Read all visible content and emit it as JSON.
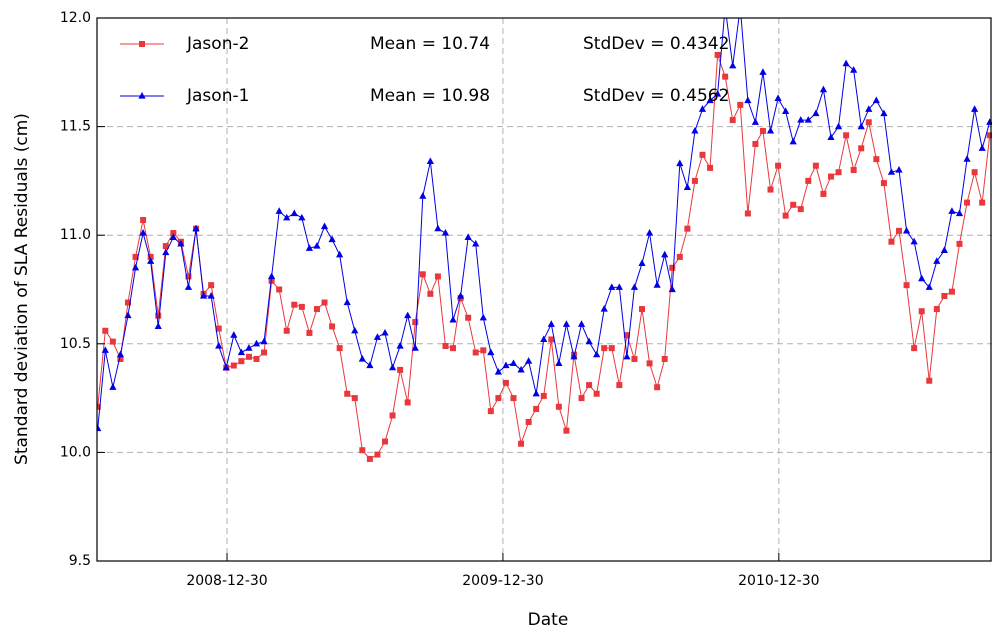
{
  "chart_data": {
    "type": "line",
    "x_label": "Date",
    "y_label": "Standard deviation of SLA Residuals (cm)",
    "x": [
      "2008-07-12",
      "2008-07-22",
      "2008-08-01",
      "2008-08-11",
      "2008-08-21",
      "2008-08-31",
      "2008-09-10",
      "2008-09-20",
      "2008-09-30",
      "2008-10-10",
      "2008-10-20",
      "2008-10-30",
      "2008-11-09",
      "2008-11-19",
      "2008-11-29",
      "2008-12-09",
      "2008-12-19",
      "2008-12-29",
      "2009-01-08",
      "2009-01-18",
      "2009-01-28",
      "2009-02-07",
      "2009-02-17",
      "2009-02-27",
      "2009-03-09",
      "2009-03-19",
      "2009-03-29",
      "2009-04-08",
      "2009-04-18",
      "2009-04-28",
      "2009-05-08",
      "2009-05-18",
      "2009-05-28",
      "2009-06-07",
      "2009-06-17",
      "2009-06-27",
      "2009-07-07",
      "2009-07-17",
      "2009-07-27",
      "2009-08-06",
      "2009-08-16",
      "2009-08-26",
      "2009-09-05",
      "2009-09-15",
      "2009-09-25",
      "2009-10-05",
      "2009-10-15",
      "2009-10-25",
      "2009-11-04",
      "2009-11-14",
      "2009-11-24",
      "2009-12-04",
      "2009-12-14",
      "2009-12-24",
      "2010-01-03",
      "2010-01-13",
      "2010-01-23",
      "2010-02-02",
      "2010-02-12",
      "2010-02-22",
      "2010-03-04",
      "2010-03-14",
      "2010-03-24",
      "2010-04-03",
      "2010-04-13",
      "2010-04-23",
      "2010-05-03",
      "2010-05-13",
      "2010-05-23",
      "2010-06-02",
      "2010-06-12",
      "2010-06-22",
      "2010-07-02",
      "2010-07-12",
      "2010-07-22",
      "2010-08-01",
      "2010-08-11",
      "2010-08-21",
      "2010-08-31",
      "2010-09-10",
      "2010-09-20",
      "2010-09-30",
      "2010-10-10",
      "2010-10-20",
      "2010-10-30",
      "2010-11-09",
      "2010-11-19",
      "2010-11-29",
      "2010-12-09",
      "2010-12-19",
      "2010-12-29",
      "2011-01-08",
      "2011-01-18",
      "2011-01-28",
      "2011-02-07",
      "2011-02-17",
      "2011-02-27",
      "2011-03-09",
      "2011-03-19",
      "2011-03-29",
      "2011-04-08",
      "2011-04-18",
      "2011-04-28",
      "2011-05-08",
      "2011-05-18",
      "2011-05-28",
      "2011-06-07",
      "2011-06-17",
      "2011-06-27",
      "2011-07-07",
      "2011-07-17",
      "2011-07-27",
      "2011-08-06",
      "2011-08-16",
      "2011-08-26",
      "2011-09-05",
      "2011-09-15",
      "2011-09-25",
      "2011-10-05"
    ],
    "series": [
      {
        "name": "Jason-2",
        "color": "#e8383d",
        "marker": "square",
        "stats": [
          "Mean = 10.74",
          "StdDev = 0.4342"
        ],
        "values": [
          10.21,
          10.56,
          10.51,
          10.43,
          10.69,
          10.9,
          11.07,
          10.9,
          10.63,
          10.95,
          11.01,
          10.97,
          10.81,
          11.03,
          10.73,
          10.77,
          10.57,
          10.39,
          10.4,
          10.42,
          10.44,
          10.43,
          10.46,
          10.79,
          10.75,
          10.56,
          10.68,
          10.67,
          10.55,
          10.66,
          10.69,
          10.58,
          10.48,
          10.27,
          10.25,
          10.01,
          9.97,
          9.99,
          10.05,
          10.17,
          10.38,
          10.23,
          10.6,
          10.82,
          10.73,
          10.81,
          10.49,
          10.48,
          10.71,
          10.62,
          10.46,
          10.47,
          10.19,
          10.25,
          10.32,
          10.25,
          10.04,
          10.14,
          10.2,
          10.26,
          10.52,
          10.21,
          10.1,
          10.45,
          10.25,
          10.31,
          10.27,
          10.48,
          10.48,
          10.31,
          10.54,
          10.43,
          10.66,
          10.41,
          10.3,
          10.43,
          10.85,
          10.9,
          11.03,
          11.25,
          11.37,
          11.31,
          11.83,
          11.73,
          11.53,
          11.6,
          11.1,
          11.42,
          11.48,
          11.21,
          11.32,
          11.09,
          11.14,
          11.12,
          11.25,
          11.32,
          11.19,
          11.27,
          11.29,
          11.46,
          11.3,
          11.4,
          11.52,
          11.35,
          11.24,
          10.97,
          11.02,
          10.77,
          10.48,
          10.65,
          10.33,
          10.66,
          10.72,
          10.74,
          10.96,
          11.15,
          11.29,
          11.15,
          11.46
        ]
      },
      {
        "name": "Jason-1",
        "color": "#0000e6",
        "marker": "triangle",
        "stats": [
          "Mean = 10.98",
          "StdDev = 0.4562"
        ],
        "values": [
          10.11,
          10.47,
          10.3,
          10.45,
          10.63,
          10.85,
          11.01,
          10.88,
          10.58,
          10.92,
          10.99,
          10.96,
          10.76,
          11.03,
          10.72,
          10.72,
          10.49,
          10.39,
          10.54,
          10.46,
          10.48,
          10.5,
          10.51,
          10.81,
          11.11,
          11.08,
          11.1,
          11.08,
          10.94,
          10.95,
          11.04,
          10.98,
          10.91,
          10.69,
          10.56,
          10.43,
          10.4,
          10.53,
          10.55,
          10.39,
          10.49,
          10.63,
          10.48,
          11.18,
          11.34,
          11.03,
          11.01,
          10.61,
          10.72,
          10.99,
          10.96,
          10.62,
          10.46,
          10.37,
          10.4,
          10.41,
          10.38,
          10.42,
          10.27,
          10.52,
          10.59,
          10.41,
          10.59,
          10.44,
          10.59,
          10.51,
          10.45,
          10.66,
          10.76,
          10.76,
          10.44,
          10.76,
          10.87,
          11.01,
          10.77,
          10.91,
          10.75,
          11.33,
          11.22,
          11.48,
          11.58,
          11.62,
          11.65,
          12.05,
          11.78,
          12.05,
          11.62,
          11.52,
          11.75,
          11.48,
          11.63,
          11.57,
          11.43,
          11.53,
          11.53,
          11.56,
          11.67,
          11.45,
          11.5,
          11.79,
          11.76,
          11.5,
          11.58,
          11.62,
          11.56,
          11.29,
          11.3,
          11.02,
          10.97,
          10.8,
          10.76,
          10.88,
          10.93,
          11.11,
          11.1,
          11.35,
          11.58,
          11.4,
          11.52
        ]
      }
    ],
    "xlim": [
      "2008-07-11",
      "2011-10-08"
    ],
    "xticks": [
      "2008-12-30",
      "2009-12-30",
      "2010-12-30"
    ],
    "ylim": [
      9.5,
      12.0
    ],
    "yticks": [
      {
        "value": 9.5,
        "label": "9.5"
      },
      {
        "value": 10,
        "label": "10.0"
      },
      {
        "value": 10.5,
        "label": "10.5"
      },
      {
        "value": 11,
        "label": "11.0"
      },
      {
        "value": 11.5,
        "label": "11.5"
      },
      {
        "value": 12,
        "label": "12.0"
      }
    ],
    "grid": true
  }
}
